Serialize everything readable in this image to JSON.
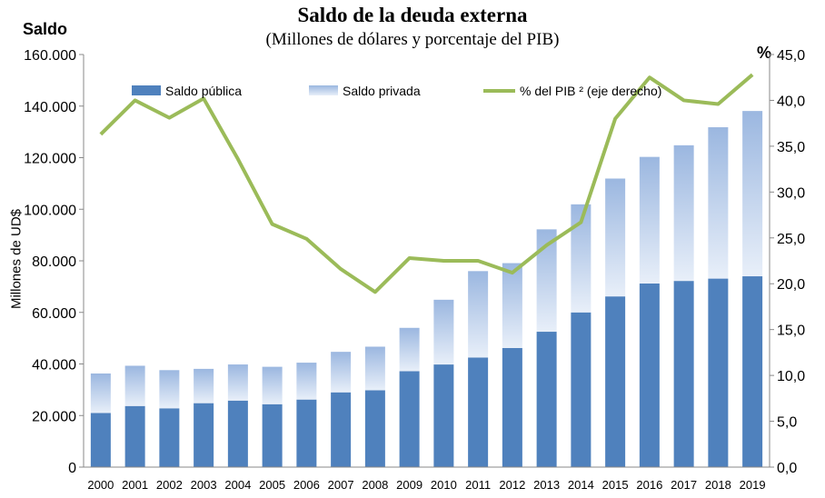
{
  "chart_data": {
    "type": "bar",
    "title": "Saldo de la deuda externa",
    "subtitle": "(Millones  de dólares y porcentaje del PIB)",
    "y_left_label": "Saldo",
    "y_right_label": "%",
    "ylabel": "Millones de UD$",
    "xlabel": "",
    "categories": [
      "2000",
      "2001",
      "2002",
      "2003",
      "2004",
      "2005",
      "2006",
      "2007",
      "2008",
      "2009",
      "2010",
      "2011",
      "2012",
      "2013",
      "2014",
      "2015",
      "2016",
      "2017",
      "2018",
      "2019"
    ],
    "series": [
      {
        "name": "Saldo pública",
        "kind": "stacked-bar",
        "color": "#4f81bd",
        "values": [
          21000,
          23700,
          22800,
          24800,
          25800,
          24400,
          26200,
          29000,
          29800,
          37200,
          39800,
          42500,
          46200,
          52500,
          60000,
          66200,
          71200,
          72200,
          73100,
          74000
        ]
      },
      {
        "name": "Saldo privada",
        "kind": "stacked-bar",
        "color_top": "#9bb7e0",
        "color_bottom": "#e8eff9",
        "values": [
          15300,
          15600,
          14800,
          13300,
          14000,
          14500,
          14300,
          15700,
          16900,
          16800,
          25100,
          33500,
          32900,
          39700,
          41900,
          45700,
          49100,
          52600,
          58700,
          64100
        ]
      },
      {
        "name": "% del PIB ² (eje derecho)",
        "kind": "line",
        "axis": "right",
        "color": "#9bbb59",
        "values": [
          36.3,
          40.0,
          38.1,
          40.2,
          33.6,
          26.5,
          24.9,
          21.6,
          19.1,
          22.8,
          22.5,
          22.5,
          21.2,
          24.2,
          26.7,
          38.0,
          42.5,
          40.0,
          39.6,
          42.8
        ]
      }
    ],
    "ylim": [
      0,
      160000
    ],
    "yticks": [
      "0",
      "20.000",
      "40.000",
      "60.000",
      "80.000",
      "100.000",
      "120.000",
      "140.000",
      "160.000"
    ],
    "y2lim": [
      0,
      45
    ],
    "y2ticks": [
      "0,0",
      "5,0",
      "10,0",
      "15,0",
      "20,0",
      "25,0",
      "30,0",
      "35,0",
      "40,0",
      "45,0"
    ],
    "legend_position": "top",
    "grid": false
  }
}
